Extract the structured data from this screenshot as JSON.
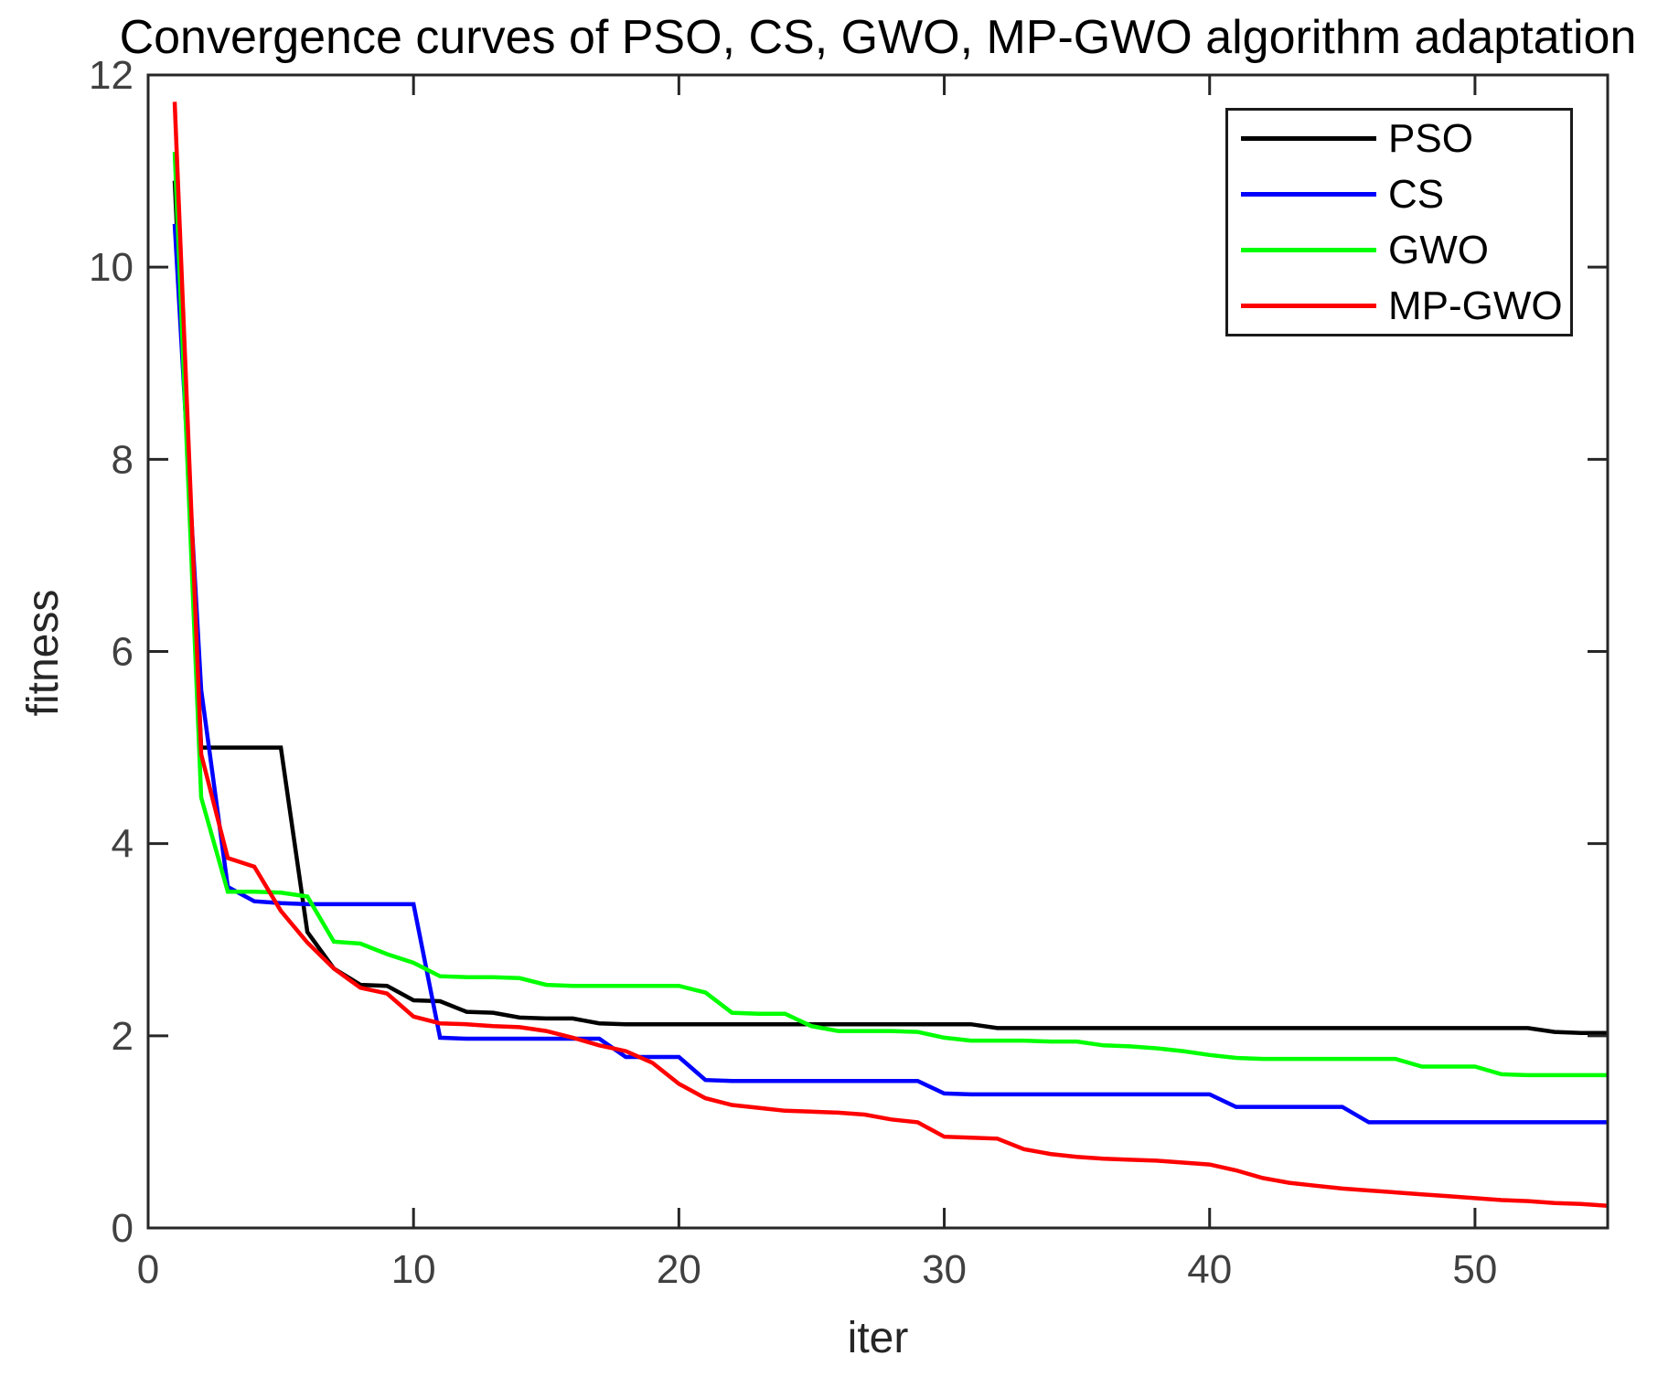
{
  "figure": {
    "title": "Convergence curves of PSO, CS, GWO, MP-GWO algorithm adaptation",
    "xlabel": "iter",
    "ylabel": "fitness"
  },
  "chart_data": {
    "type": "line",
    "title": "Convergence curves of PSO, CS, GWO, MP-GWO algorithm adaptation",
    "xlabel": "iter",
    "ylabel": "fitness",
    "xlim": [
      0,
      55
    ],
    "ylim": [
      0,
      12
    ],
    "x_ticks": [
      0,
      10,
      20,
      30,
      40,
      50
    ],
    "y_ticks": [
      0,
      2,
      4,
      6,
      8,
      10,
      12
    ],
    "grid": false,
    "legend_position": "top-right",
    "axis_color": "#262626",
    "tick_label_color": "#404040",
    "x_start": 1,
    "series": [
      {
        "name": "PSO",
        "color": "#000000",
        "values": [
          10.9,
          5.0,
          5.0,
          5.0,
          5.0,
          3.08,
          2.7,
          2.53,
          2.52,
          2.37,
          2.36,
          2.25,
          2.24,
          2.19,
          2.18,
          2.18,
          2.13,
          2.12,
          2.12,
          2.12,
          2.12,
          2.12,
          2.12,
          2.12,
          2.12,
          2.12,
          2.12,
          2.12,
          2.12,
          2.12,
          2.12,
          2.08,
          2.08,
          2.08,
          2.08,
          2.08,
          2.08,
          2.08,
          2.08,
          2.08,
          2.08,
          2.08,
          2.08,
          2.08,
          2.08,
          2.08,
          2.08,
          2.08,
          2.08,
          2.08,
          2.08,
          2.08,
          2.04,
          2.03,
          2.03
        ]
      },
      {
        "name": "CS",
        "color": "#0000ff",
        "values": [
          10.45,
          5.6,
          3.55,
          3.4,
          3.38,
          3.37,
          3.37,
          3.37,
          3.37,
          3.37,
          1.98,
          1.97,
          1.97,
          1.97,
          1.97,
          1.97,
          1.97,
          1.78,
          1.78,
          1.78,
          1.54,
          1.53,
          1.53,
          1.53,
          1.53,
          1.53,
          1.53,
          1.53,
          1.53,
          1.4,
          1.39,
          1.39,
          1.39,
          1.39,
          1.39,
          1.39,
          1.39,
          1.39,
          1.39,
          1.39,
          1.26,
          1.26,
          1.26,
          1.26,
          1.26,
          1.1,
          1.1,
          1.1,
          1.1,
          1.1,
          1.1,
          1.1,
          1.1,
          1.1,
          1.1
        ]
      },
      {
        "name": "GWO",
        "color": "#00ff00",
        "values": [
          11.2,
          4.48,
          3.5,
          3.5,
          3.49,
          3.45,
          2.98,
          2.96,
          2.85,
          2.76,
          2.62,
          2.61,
          2.61,
          2.6,
          2.53,
          2.52,
          2.52,
          2.52,
          2.52,
          2.52,
          2.45,
          2.24,
          2.23,
          2.23,
          2.1,
          2.05,
          2.05,
          2.05,
          2.04,
          1.98,
          1.95,
          1.95,
          1.95,
          1.94,
          1.94,
          1.9,
          1.89,
          1.87,
          1.84,
          1.8,
          1.77,
          1.76,
          1.76,
          1.76,
          1.76,
          1.76,
          1.76,
          1.68,
          1.68,
          1.68,
          1.6,
          1.59,
          1.59,
          1.59,
          1.59
        ]
      },
      {
        "name": "MP-GWO",
        "color": "#ff0000",
        "values": [
          11.72,
          4.93,
          3.85,
          3.76,
          3.3,
          2.97,
          2.7,
          2.5,
          2.44,
          2.2,
          2.13,
          2.12,
          2.1,
          2.09,
          2.05,
          1.98,
          1.9,
          1.84,
          1.72,
          1.5,
          1.35,
          1.28,
          1.25,
          1.22,
          1.21,
          1.2,
          1.18,
          1.13,
          1.1,
          0.95,
          0.94,
          0.93,
          0.82,
          0.77,
          0.74,
          0.72,
          0.71,
          0.7,
          0.68,
          0.66,
          0.6,
          0.52,
          0.47,
          0.44,
          0.41,
          0.39,
          0.37,
          0.35,
          0.33,
          0.31,
          0.29,
          0.28,
          0.26,
          0.25,
          0.23
        ]
      }
    ]
  }
}
